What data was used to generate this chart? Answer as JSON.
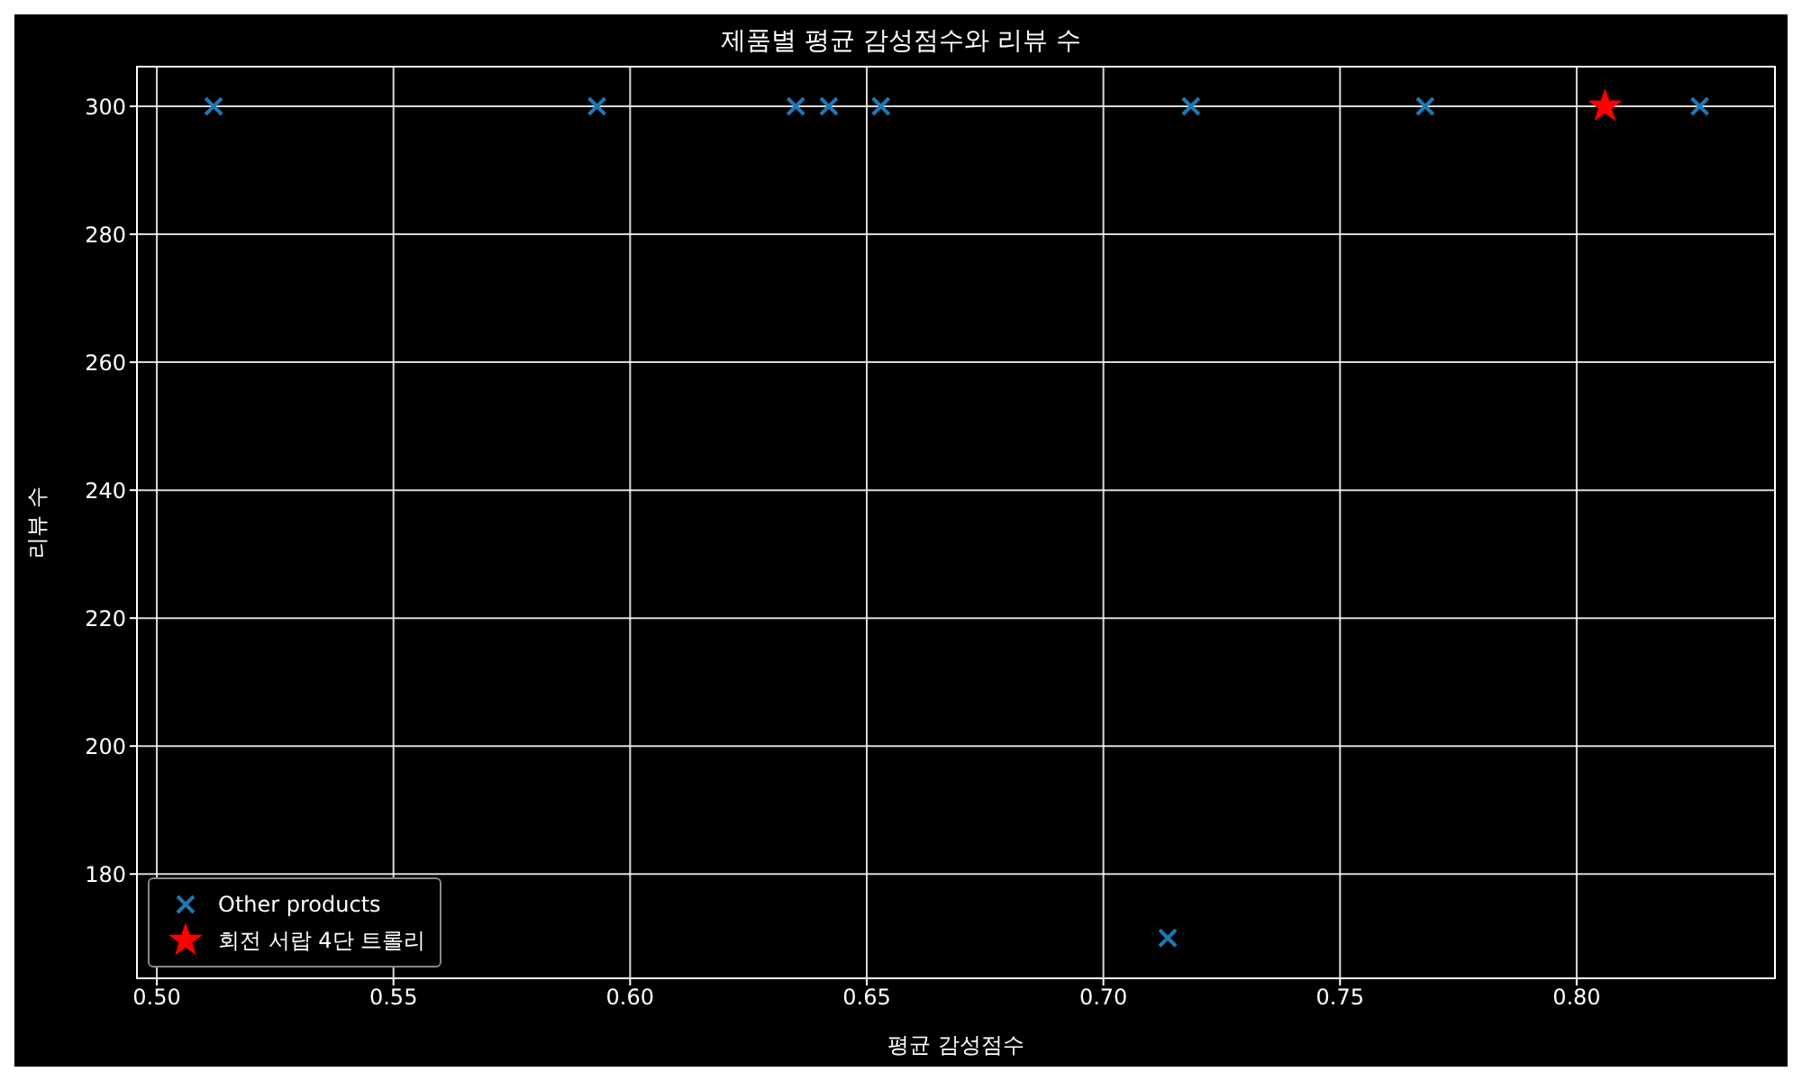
{
  "chart_data": {
    "type": "scatter",
    "title": "제품별 평균 감성점수와 리뷰 수",
    "xlabel": "평균 감성점수",
    "ylabel": "리뷰 수",
    "series": [
      {
        "name": "Other products",
        "color": "#1f77b4",
        "marker": "cross",
        "x": [
          0.512,
          0.593,
          0.635,
          0.642,
          0.653,
          0.7185,
          0.7136,
          0.768,
          0.826
        ],
        "values": [
          300,
          300,
          300,
          300,
          300,
          300,
          170,
          300,
          300
        ]
      },
      {
        "name": "회전 서랍 4단 트롤리",
        "color": "#ff0000",
        "marker": "star",
        "x": [
          0.806
        ],
        "values": [
          300
        ]
      }
    ],
    "xlim": [
      0.4958,
      0.8419
    ],
    "xticks": [
      {
        "value": 0.5,
        "label": "0.50"
      },
      {
        "value": 0.55,
        "label": "0.55"
      },
      {
        "value": 0.6,
        "label": "0.60"
      },
      {
        "value": 0.65,
        "label": "0.65"
      },
      {
        "value": 0.7,
        "label": "0.70"
      },
      {
        "value": 0.75,
        "label": "0.75"
      },
      {
        "value": 0.8,
        "label": "0.80"
      }
    ],
    "ylim": [
      163.7,
      306.2
    ],
    "yticks": [
      180,
      200,
      220,
      240,
      260,
      280,
      300
    ],
    "grid": true,
    "legend": "bottom left"
  }
}
